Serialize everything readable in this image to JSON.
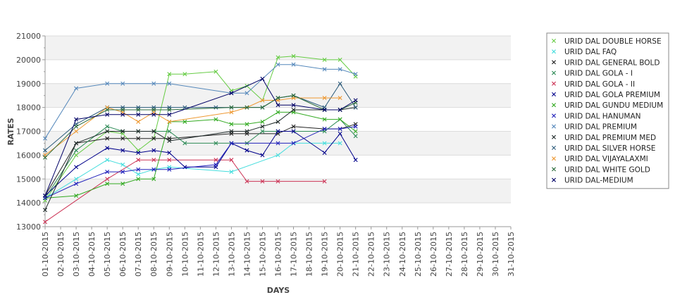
{
  "chart_data": {
    "type": "line",
    "title": "",
    "xlabel": "DAYS",
    "ylabel": "RATES",
    "ylim": [
      13000,
      21000
    ],
    "yticks": [
      13000,
      14000,
      15000,
      16000,
      17000,
      18000,
      19000,
      20000,
      21000
    ],
    "categories": [
      "01-10-2015",
      "02-10-2015",
      "03-10-2015",
      "04-10-2015",
      "05-10-2015",
      "06-10-2015",
      "07-10-2015",
      "08-10-2015",
      "09-10-2015",
      "10-10-2015",
      "11-10-2015",
      "12-10-2015",
      "13-10-2015",
      "14-10-2015",
      "15-10-2015",
      "16-10-2015",
      "17-10-2015",
      "18-10-2015",
      "19-10-2015",
      "20-10-2015",
      "21-10-2015",
      "22-10-2015",
      "23-10-2015",
      "24-10-2015",
      "25-10-2015",
      "26-10-2015",
      "27-10-2015",
      "28-10-2015",
      "29-10-2015",
      "30-10-2015",
      "31-10-2015"
    ],
    "grid": true,
    "legend_position": "right",
    "series": [
      {
        "name": "URID DAL DOUBLE HORSE",
        "color": "#66cc44",
        "points": [
          [
            "01-10-2015",
            14100
          ],
          [
            "03-10-2015",
            16000
          ],
          [
            "05-10-2015",
            17000
          ],
          [
            "06-10-2015",
            16900
          ],
          [
            "07-10-2015",
            16200
          ],
          [
            "08-10-2015",
            16700
          ],
          [
            "09-10-2015",
            19400
          ],
          [
            "10-10-2015",
            19400
          ],
          [
            "12-10-2015",
            19500
          ],
          [
            "13-10-2015",
            18700
          ],
          [
            "14-10-2015",
            18900
          ],
          [
            "15-10-2015",
            18300
          ],
          [
            "16-10-2015",
            20100
          ],
          [
            "17-10-2015",
            20150
          ],
          [
            "19-10-2015",
            20000
          ],
          [
            "20-10-2015",
            20000
          ],
          [
            "21-10-2015",
            19300
          ]
        ]
      },
      {
        "name": "URID DAL FAQ",
        "color": "#44dddd",
        "points": [
          [
            "01-10-2015",
            14200
          ],
          [
            "03-10-2015",
            15000
          ],
          [
            "05-10-2015",
            15800
          ],
          [
            "06-10-2015",
            15600
          ],
          [
            "07-10-2015",
            15200
          ],
          [
            "08-10-2015",
            15400
          ],
          [
            "09-10-2015",
            15500
          ],
          [
            "13-10-2015",
            15300
          ],
          [
            "16-10-2015",
            16000
          ],
          [
            "17-10-2015",
            16500
          ],
          [
            "19-10-2015",
            16500
          ],
          [
            "20-10-2015",
            16500
          ]
        ]
      },
      {
        "name": "URID DAL GENERAL BOLD",
        "color": "#222222",
        "points": [
          [
            "01-10-2015",
            14300
          ],
          [
            "03-10-2015",
            16500
          ],
          [
            "05-10-2015",
            16700
          ],
          [
            "06-10-2015",
            16700
          ],
          [
            "07-10-2015",
            16700
          ],
          [
            "08-10-2015",
            16700
          ],
          [
            "09-10-2015",
            16700
          ],
          [
            "13-10-2015",
            16900
          ],
          [
            "14-10-2015",
            16900
          ],
          [
            "16-10-2015",
            16900
          ],
          [
            "17-10-2015",
            17200
          ],
          [
            "19-10-2015",
            17100
          ],
          [
            "20-10-2015",
            17100
          ],
          [
            "21-10-2015",
            17300
          ]
        ]
      },
      {
        "name": "URID DAL GOLA - I",
        "color": "#2e8b57",
        "points": [
          [
            "01-10-2015",
            14200
          ],
          [
            "03-10-2015",
            16200
          ],
          [
            "05-10-2015",
            17200
          ],
          [
            "06-10-2015",
            17000
          ],
          [
            "07-10-2015",
            17000
          ],
          [
            "08-10-2015",
            17000
          ],
          [
            "09-10-2015",
            17000
          ],
          [
            "10-10-2015",
            16500
          ],
          [
            "12-10-2015",
            16500
          ],
          [
            "13-10-2015",
            16500
          ],
          [
            "14-10-2015",
            16500
          ],
          [
            "15-10-2015",
            17000
          ],
          [
            "16-10-2015",
            17000
          ],
          [
            "17-10-2015",
            17000
          ],
          [
            "19-10-2015",
            17000
          ],
          [
            "20-10-2015",
            17500
          ],
          [
            "21-10-2015",
            16800
          ]
        ]
      },
      {
        "name": "URID DAL GOLA - II",
        "color": "#cc3355",
        "points": [
          [
            "01-10-2015",
            13200
          ],
          [
            "05-10-2015",
            15000
          ],
          [
            "07-10-2015",
            15800
          ],
          [
            "08-10-2015",
            15800
          ],
          [
            "09-10-2015",
            15800
          ],
          [
            "12-10-2015",
            15800
          ],
          [
            "13-10-2015",
            15800
          ],
          [
            "14-10-2015",
            14900
          ],
          [
            "15-10-2015",
            14900
          ],
          [
            "16-10-2015",
            14900
          ],
          [
            "19-10-2015",
            14900
          ]
        ]
      },
      {
        "name": "URID DAL GOLA PREMIUM",
        "color": "#00008b",
        "points": [
          [
            "01-10-2015",
            14300
          ],
          [
            "03-10-2015",
            15500
          ],
          [
            "05-10-2015",
            16300
          ],
          [
            "06-10-2015",
            16200
          ],
          [
            "07-10-2015",
            16100
          ],
          [
            "08-10-2015",
            16200
          ],
          [
            "09-10-2015",
            16100
          ],
          [
            "10-10-2015",
            15500
          ],
          [
            "12-10-2015",
            15500
          ],
          [
            "13-10-2015",
            16500
          ],
          [
            "14-10-2015",
            16200
          ],
          [
            "15-10-2015",
            16000
          ],
          [
            "16-10-2015",
            17000
          ],
          [
            "17-10-2015",
            17000
          ],
          [
            "19-10-2015",
            16100
          ],
          [
            "20-10-2015",
            16900
          ],
          [
            "21-10-2015",
            15800
          ]
        ]
      },
      {
        "name": "URID DAL GUNDU MEDIUM",
        "color": "#33aa22",
        "points": [
          [
            "01-10-2015",
            14200
          ],
          [
            "03-10-2015",
            14300
          ],
          [
            "05-10-2015",
            14800
          ],
          [
            "06-10-2015",
            14800
          ],
          [
            "07-10-2015",
            15000
          ],
          [
            "08-10-2015",
            15000
          ],
          [
            "09-10-2015",
            17400
          ],
          [
            "10-10-2015",
            17400
          ],
          [
            "12-10-2015",
            17500
          ],
          [
            "13-10-2015",
            17300
          ],
          [
            "14-10-2015",
            17300
          ],
          [
            "15-10-2015",
            17400
          ],
          [
            "16-10-2015",
            17800
          ],
          [
            "17-10-2015",
            17800
          ],
          [
            "19-10-2015",
            17500
          ],
          [
            "20-10-2015",
            17500
          ],
          [
            "21-10-2015",
            17000
          ]
        ]
      },
      {
        "name": "URID DAL HANUMAN",
        "color": "#2222bb",
        "points": [
          [
            "01-10-2015",
            14200
          ],
          [
            "03-10-2015",
            14800
          ],
          [
            "05-10-2015",
            15300
          ],
          [
            "06-10-2015",
            15300
          ],
          [
            "07-10-2015",
            15400
          ],
          [
            "08-10-2015",
            15400
          ],
          [
            "09-10-2015",
            15400
          ],
          [
            "12-10-2015",
            15600
          ],
          [
            "13-10-2015",
            16500
          ],
          [
            "16-10-2015",
            16500
          ],
          [
            "17-10-2015",
            16500
          ],
          [
            "19-10-2015",
            17100
          ],
          [
            "20-10-2015",
            17100
          ],
          [
            "21-10-2015",
            17200
          ]
        ]
      },
      {
        "name": "URID DAL PREMIUM",
        "color": "#5588bb",
        "points": [
          [
            "01-10-2015",
            16700
          ],
          [
            "03-10-2015",
            18800
          ],
          [
            "05-10-2015",
            19000
          ],
          [
            "06-10-2015",
            19000
          ],
          [
            "08-10-2015",
            19000
          ],
          [
            "09-10-2015",
            19000
          ],
          [
            "13-10-2015",
            18600
          ],
          [
            "14-10-2015",
            18600
          ],
          [
            "15-10-2015",
            19200
          ],
          [
            "16-10-2015",
            19800
          ],
          [
            "17-10-2015",
            19800
          ],
          [
            "19-10-2015",
            19600
          ],
          [
            "20-10-2015",
            19600
          ],
          [
            "21-10-2015",
            19400
          ]
        ]
      },
      {
        "name": "URID DAL PREMIUM MED",
        "color": "#1f2a2a",
        "points": [
          [
            "01-10-2015",
            13700
          ],
          [
            "03-10-2015",
            16500
          ],
          [
            "05-10-2015",
            17000
          ],
          [
            "06-10-2015",
            17000
          ],
          [
            "07-10-2015",
            17000
          ],
          [
            "08-10-2015",
            17000
          ],
          [
            "09-10-2015",
            16600
          ],
          [
            "13-10-2015",
            17000
          ],
          [
            "14-10-2015",
            17000
          ],
          [
            "15-10-2015",
            17200
          ],
          [
            "16-10-2015",
            17400
          ],
          [
            "17-10-2015",
            17900
          ],
          [
            "19-10-2015",
            17900
          ],
          [
            "20-10-2015",
            17900
          ],
          [
            "21-10-2015",
            18000
          ]
        ]
      },
      {
        "name": "URID DAL SILVER HORSE",
        "color": "#2a5a7a",
        "points": [
          [
            "01-10-2015",
            16200
          ],
          [
            "03-10-2015",
            17300
          ],
          [
            "05-10-2015",
            18000
          ],
          [
            "06-10-2015",
            18000
          ],
          [
            "07-10-2015",
            18000
          ],
          [
            "08-10-2015",
            18000
          ],
          [
            "09-10-2015",
            18000
          ],
          [
            "10-10-2015",
            18000
          ],
          [
            "12-10-2015",
            18000
          ],
          [
            "13-10-2015",
            18000
          ],
          [
            "14-10-2015",
            18000
          ],
          [
            "15-10-2015",
            18000
          ],
          [
            "16-10-2015",
            18400
          ],
          [
            "17-10-2015",
            18500
          ],
          [
            "19-10-2015",
            18000
          ],
          [
            "20-10-2015",
            19000
          ],
          [
            "21-10-2015",
            18000
          ]
        ]
      },
      {
        "name": "URID DAL VIJAYALAXMI",
        "color": "#ee9933",
        "points": [
          [
            "01-10-2015",
            16000
          ],
          [
            "03-10-2015",
            17000
          ],
          [
            "05-10-2015",
            18000
          ],
          [
            "06-10-2015",
            17800
          ],
          [
            "07-10-2015",
            17400
          ],
          [
            "08-10-2015",
            17800
          ],
          [
            "09-10-2015",
            17400
          ],
          [
            "13-10-2015",
            17800
          ],
          [
            "14-10-2015",
            18000
          ],
          [
            "15-10-2015",
            18300
          ],
          [
            "16-10-2015",
            18300
          ],
          [
            "17-10-2015",
            18400
          ],
          [
            "19-10-2015",
            18400
          ],
          [
            "20-10-2015",
            18400
          ]
        ]
      },
      {
        "name": "URID DAL WHITE GOLD",
        "color": "#2b6b3b",
        "points": [
          [
            "01-10-2015",
            15900
          ],
          [
            "03-10-2015",
            17200
          ],
          [
            "05-10-2015",
            17900
          ],
          [
            "06-10-2015",
            17900
          ],
          [
            "07-10-2015",
            17900
          ],
          [
            "08-10-2015",
            17900
          ],
          [
            "09-10-2015",
            17900
          ],
          [
            "13-10-2015",
            18000
          ],
          [
            "14-10-2015",
            18000
          ],
          [
            "15-10-2015",
            18000
          ],
          [
            "16-10-2015",
            18400
          ],
          [
            "17-10-2015",
            18500
          ],
          [
            "19-10-2015",
            17900
          ],
          [
            "20-10-2015",
            17900
          ],
          [
            "21-10-2015",
            18200
          ]
        ]
      },
      {
        "name": "URID DAL-MEDIUM",
        "color": "#000066",
        "points": [
          [
            "01-10-2015",
            14300
          ],
          [
            "03-10-2015",
            17500
          ],
          [
            "05-10-2015",
            17700
          ],
          [
            "06-10-2015",
            17700
          ],
          [
            "07-10-2015",
            17700
          ],
          [
            "08-10-2015",
            17700
          ],
          [
            "09-10-2015",
            17700
          ],
          [
            "13-10-2015",
            18600
          ],
          [
            "15-10-2015",
            19200
          ],
          [
            "16-10-2015",
            18100
          ],
          [
            "17-10-2015",
            18100
          ],
          [
            "19-10-2015",
            17900
          ],
          [
            "20-10-2015",
            17900
          ],
          [
            "21-10-2015",
            18300
          ]
        ]
      }
    ]
  }
}
